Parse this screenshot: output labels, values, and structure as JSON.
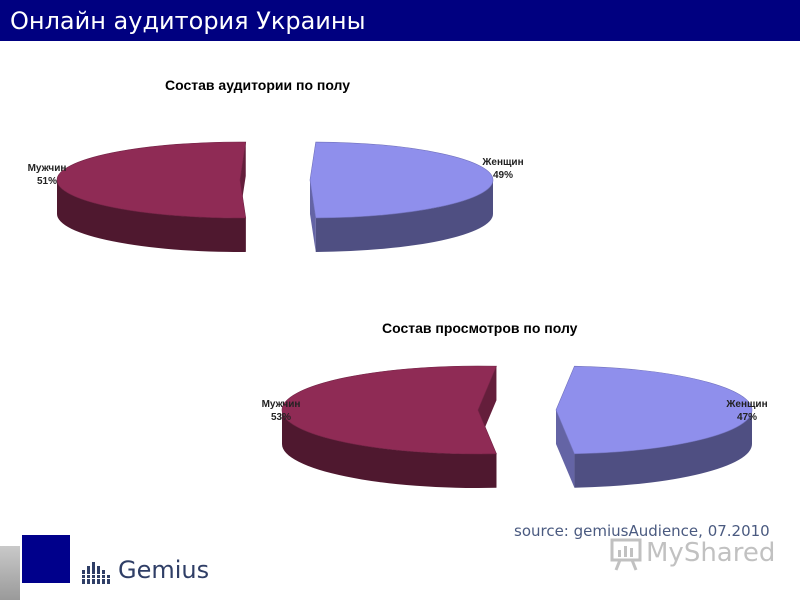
{
  "header": {
    "title": "Онлайн аудитория Украины"
  },
  "chart_data": [
    {
      "type": "pie",
      "title": "Состав аудитории по полу",
      "slices": [
        {
          "label": "Мужчин",
          "value": 51,
          "value_label": "51%",
          "color": "#8f2b55"
        },
        {
          "label": "Женщин",
          "value": 49,
          "value_label": "49%",
          "color": "#8f8fec"
        }
      ]
    },
    {
      "type": "pie",
      "title": "Состав просмотров по полу",
      "slices": [
        {
          "label": "Мужчин",
          "value": 53,
          "value_label": "53%",
          "color": "#8f2b55"
        },
        {
          "label": "Женщин",
          "value": 47,
          "value_label": "47%",
          "color": "#8f8fec"
        }
      ]
    }
  ],
  "footer": {
    "source": "source: gemiusAudience, 07.2010",
    "gemius_logo": "Gemius",
    "myshared_logo": "MyShared"
  }
}
